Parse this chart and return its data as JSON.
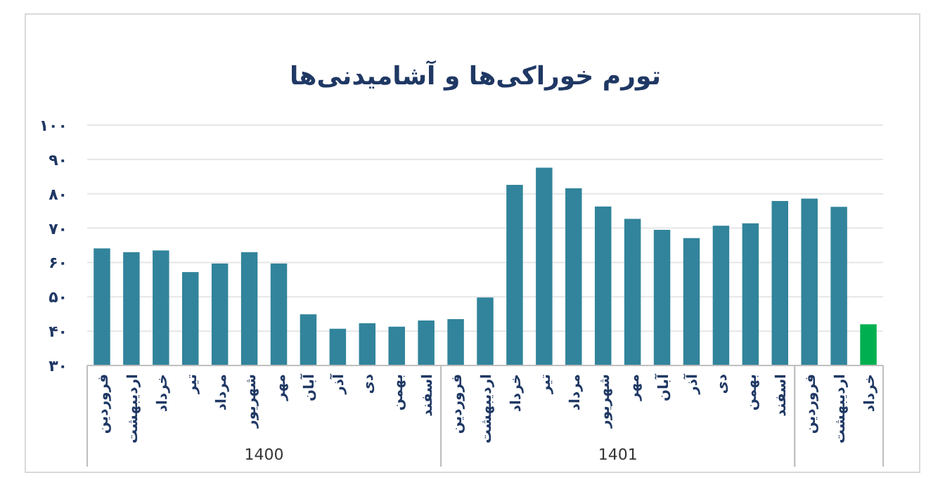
{
  "chart_data": {
    "type": "bar",
    "title": "تورم خوراکی‌ها و آشامیدنی‌ها",
    "categories": [
      "فروردین",
      "اردیبهشت",
      "خرداد",
      "تیر",
      "مرداد",
      "شهریور",
      "مهر",
      "آبان",
      "آذر",
      "دی",
      "بهمن",
      "اسفند",
      "فروردین",
      "اردیبهشت",
      "خرداد",
      "تیر",
      "مرداد",
      "شهریور",
      "مهر",
      "آبان",
      "آذر",
      "دی",
      "بهمن",
      "اسفند",
      "فروردین",
      "اردیبهشت",
      "خرداد"
    ],
    "values": [
      64.1,
      63.0,
      63.5,
      57.2,
      59.7,
      63.0,
      59.7,
      44.9,
      40.7,
      42.3,
      41.3,
      43.1,
      43.5,
      49.8,
      82.6,
      87.6,
      81.6,
      76.3,
      72.7,
      69.5,
      67.1,
      70.7,
      71.4,
      77.9,
      78.6,
      76.2,
      42.0
    ],
    "colors": [
      "#31849b",
      "#31849b",
      "#31849b",
      "#31849b",
      "#31849b",
      "#31849b",
      "#31849b",
      "#31849b",
      "#31849b",
      "#31849b",
      "#31849b",
      "#31849b",
      "#31849b",
      "#31849b",
      "#31849b",
      "#31849b",
      "#31849b",
      "#31849b",
      "#31849b",
      "#31849b",
      "#31849b",
      "#31849b",
      "#31849b",
      "#31849b",
      "#31849b",
      "#31849b",
      "#00b050"
    ],
    "ylim": [
      30,
      100
    ],
    "yticks": [
      {
        "value": 30,
        "label": "۳۰"
      },
      {
        "value": 40,
        "label": "۴۰"
      },
      {
        "value": 50,
        "label": "۵۰"
      },
      {
        "value": 60,
        "label": "۶۰"
      },
      {
        "value": 70,
        "label": "۷۰"
      },
      {
        "value": 80,
        "label": "۸۰"
      },
      {
        "value": 90,
        "label": "۹۰"
      },
      {
        "value": 100,
        "label": "۱۰۰"
      }
    ],
    "grid": "y",
    "annotations": [
      "1400",
      "1401"
    ]
  }
}
